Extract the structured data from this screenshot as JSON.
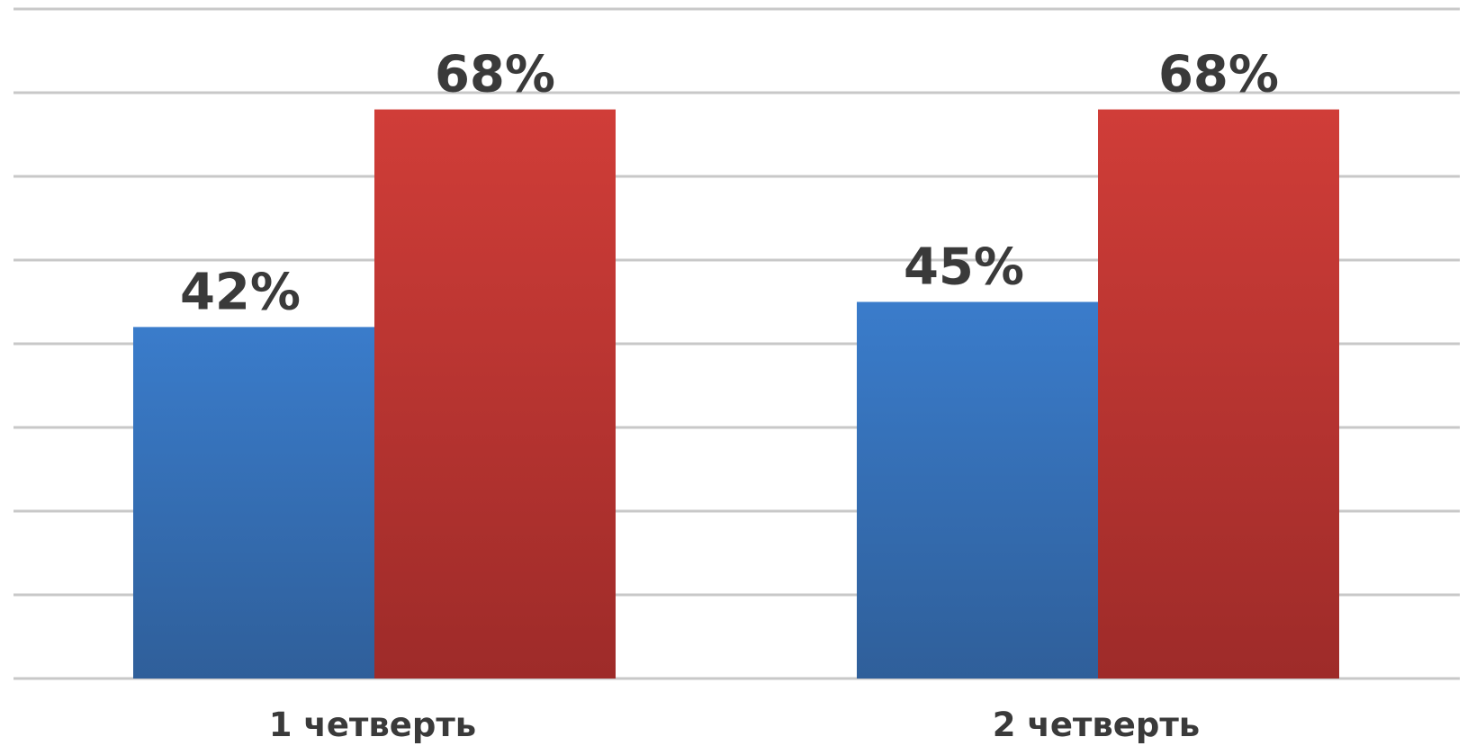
{
  "chart_data": {
    "type": "bar",
    "categories": [
      "1 четверть",
      "2 четверть"
    ],
    "series": [
      {
        "values": [
          42,
          45
        ],
        "color": "#3a7ccb",
        "color_dark": "#2f5f9a"
      },
      {
        "values": [
          68,
          68
        ],
        "color": "#d03d38",
        "color_dark": "#9e2b29"
      }
    ],
    "data_labels": [
      [
        "42%",
        "45%"
      ],
      [
        "68%",
        "68%"
      ]
    ],
    "ylim": [
      0,
      80
    ],
    "grid": true,
    "legend": "none"
  }
}
